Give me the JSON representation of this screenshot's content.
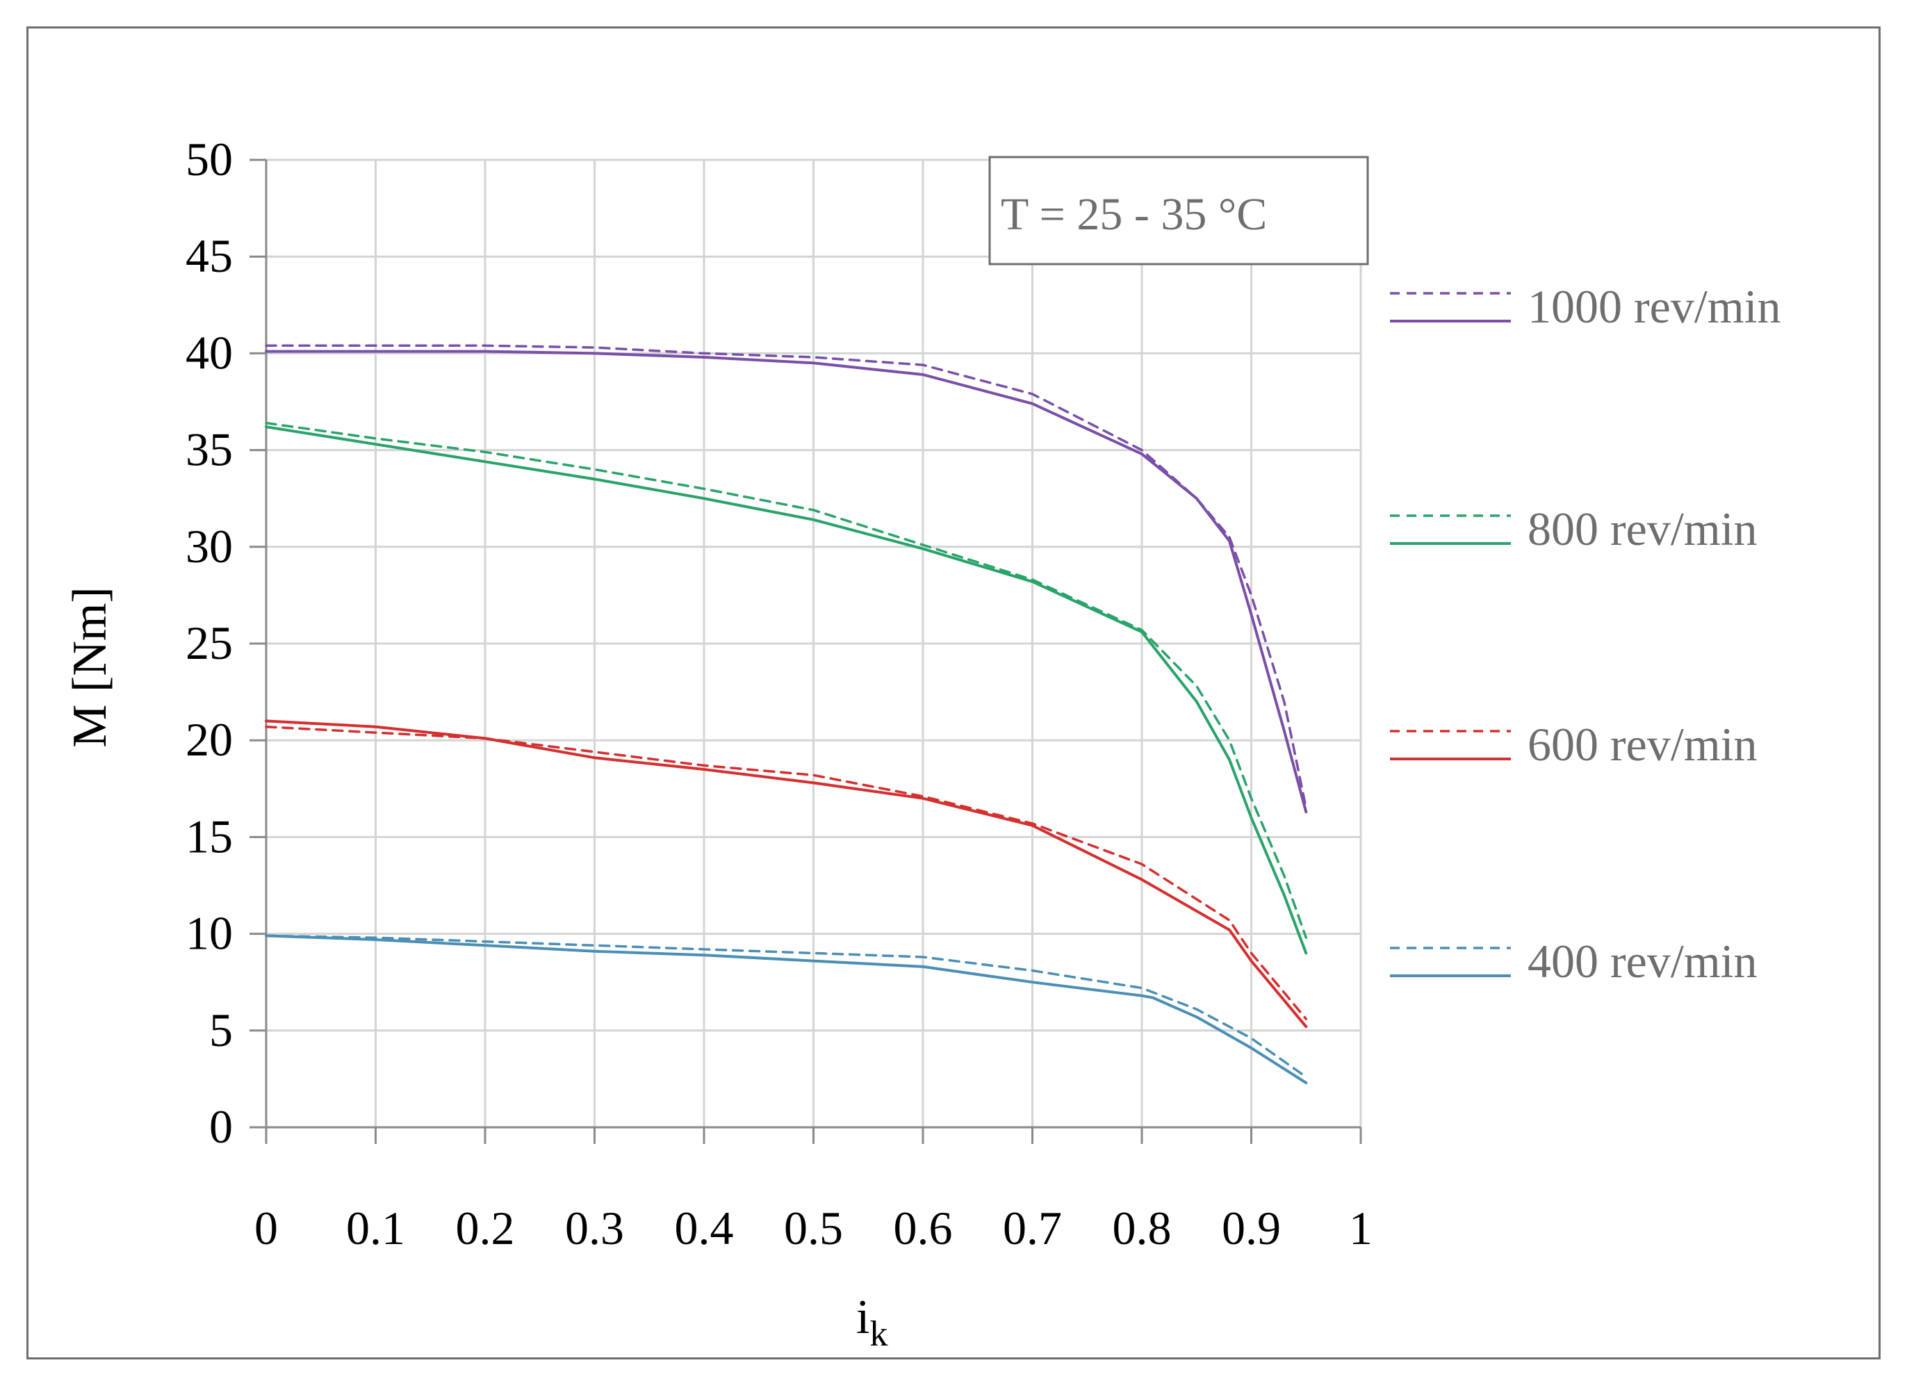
{
  "chart_data": {
    "type": "line",
    "title": "",
    "xlabel": "i",
    "xlabel_subscript": "k",
    "ylabel": "M [Nm]",
    "xlim": [
      0,
      1
    ],
    "ylim": [
      0,
      50
    ],
    "x_ticks": [
      "0",
      "0.1",
      "0.2",
      "0.3",
      "0.4",
      "0.5",
      "0.6",
      "0.7",
      "0.8",
      "0.9",
      "1"
    ],
    "y_ticks": [
      "0",
      "5",
      "10",
      "15",
      "20",
      "25",
      "30",
      "35",
      "40",
      "45",
      "50"
    ],
    "grid": true,
    "legend_position": "right",
    "annotation": "T = 25 - 35 °C",
    "series": [
      {
        "name": "1000 rev/min",
        "color": "#7a4fa8",
        "dashed": {
          "x": [
            0,
            0.1,
            0.2,
            0.3,
            0.4,
            0.5,
            0.6,
            0.7,
            0.8,
            0.85,
            0.88,
            0.9,
            0.93,
            0.95
          ],
          "y": [
            40.4,
            40.4,
            40.4,
            40.3,
            40.0,
            39.8,
            39.4,
            37.9,
            35.0,
            32.5,
            30.5,
            27.5,
            22.0,
            16.5
          ]
        },
        "solid": {
          "x": [
            0,
            0.1,
            0.2,
            0.3,
            0.4,
            0.5,
            0.6,
            0.7,
            0.8,
            0.85,
            0.88,
            0.9,
            0.93,
            0.95
          ],
          "y": [
            40.1,
            40.1,
            40.1,
            40.0,
            39.8,
            39.5,
            38.9,
            37.4,
            34.8,
            32.5,
            30.3,
            26.5,
            20.5,
            16.3
          ]
        }
      },
      {
        "name": "800 rev/min",
        "color": "#2aa36b",
        "dashed": {
          "x": [
            0,
            0.1,
            0.2,
            0.3,
            0.4,
            0.5,
            0.6,
            0.7,
            0.8,
            0.85,
            0.88,
            0.9,
            0.93,
            0.95
          ],
          "y": [
            36.4,
            35.6,
            34.9,
            34.0,
            33.0,
            31.9,
            30.1,
            28.3,
            25.7,
            22.8,
            20.0,
            17.0,
            13.0,
            9.8
          ]
        },
        "solid": {
          "x": [
            0,
            0.1,
            0.2,
            0.3,
            0.4,
            0.5,
            0.6,
            0.7,
            0.8,
            0.85,
            0.88,
            0.9,
            0.93,
            0.95
          ],
          "y": [
            36.2,
            35.3,
            34.4,
            33.5,
            32.5,
            31.4,
            29.9,
            28.2,
            25.6,
            22.0,
            19.0,
            16.0,
            12.0,
            9.0
          ]
        }
      },
      {
        "name": "600 rev/min",
        "color": "#d3302f",
        "dashed": {
          "x": [
            0,
            0.1,
            0.2,
            0.3,
            0.4,
            0.5,
            0.6,
            0.7,
            0.8,
            0.88,
            0.9,
            0.95
          ],
          "y": [
            20.7,
            20.4,
            20.1,
            19.4,
            18.7,
            18.2,
            17.1,
            15.7,
            13.6,
            10.7,
            9.0,
            5.6
          ]
        },
        "solid": {
          "x": [
            0,
            0.1,
            0.2,
            0.3,
            0.4,
            0.5,
            0.6,
            0.7,
            0.8,
            0.88,
            0.9,
            0.95
          ],
          "y": [
            21.0,
            20.7,
            20.1,
            19.1,
            18.5,
            17.8,
            17.0,
            15.6,
            12.8,
            10.2,
            8.6,
            5.2
          ]
        }
      },
      {
        "name": "400 rev/min",
        "color": "#4b8fb5",
        "dashed": {
          "x": [
            0,
            0.1,
            0.2,
            0.3,
            0.4,
            0.5,
            0.6,
            0.7,
            0.8,
            0.85,
            0.9,
            0.95
          ],
          "y": [
            9.9,
            9.8,
            9.6,
            9.4,
            9.2,
            9.0,
            8.8,
            8.1,
            7.2,
            6.1,
            4.6,
            2.6
          ]
        },
        "solid": {
          "x": [
            0,
            0.1,
            0.2,
            0.3,
            0.4,
            0.5,
            0.6,
            0.7,
            0.8,
            0.81,
            0.85,
            0.9,
            0.95
          ],
          "y": [
            9.9,
            9.7,
            9.4,
            9.1,
            8.9,
            8.6,
            8.3,
            7.5,
            6.8,
            6.7,
            5.7,
            4.1,
            2.3
          ]
        }
      }
    ]
  }
}
